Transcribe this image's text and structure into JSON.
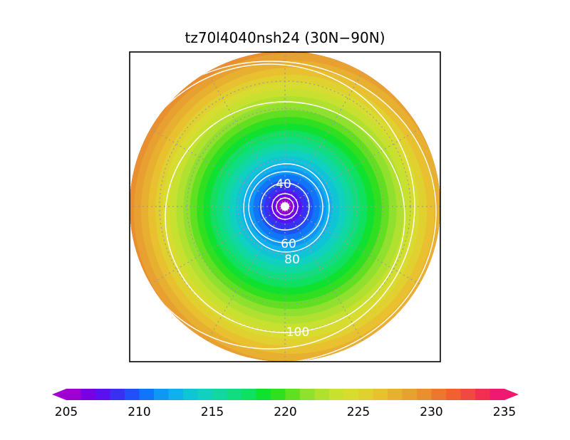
{
  "chart_data": {
    "type": "heatmap",
    "title": "tz70l4040nsh24 (30N−90N)",
    "projection": "north-polar-stereographic",
    "latitude_range": [
      "30N",
      "90N"
    ],
    "colorbar": {
      "min": 205,
      "max": 235,
      "step": 1,
      "tick_labels": [
        "205",
        "210",
        "215",
        "220",
        "225",
        "230",
        "235"
      ],
      "tick_values": [
        205,
        210,
        215,
        220,
        225,
        230,
        235
      ],
      "colors": [
        "#9d00d0",
        "#7a00e4",
        "#5a10f0",
        "#3a30f4",
        "#2050f8",
        "#1075f8",
        "#1097f4",
        "#10b0ec",
        "#10c4d8",
        "#10d0c0",
        "#10d8a0",
        "#10dc80",
        "#10e060",
        "#10e030",
        "#30e020",
        "#60e020",
        "#90e030",
        "#b0e030",
        "#c8e030",
        "#d8dc30",
        "#e0d030",
        "#e8c030",
        "#e8b030",
        "#e8a030",
        "#e89030",
        "#ec7830",
        "#f06030",
        "#f04a40",
        "#f03050",
        "#f01870"
      ],
      "extend": "both"
    },
    "field_center_value": 205,
    "field_edge_values": {
      "top-left": 233,
      "left": 229,
      "bottom": 226,
      "right": 222
    },
    "contour_lines": [
      {
        "value": 20,
        "label": ""
      },
      {
        "value": 40,
        "label": "40"
      },
      {
        "value": 60,
        "label": "60"
      },
      {
        "value": 80,
        "label": "80"
      },
      {
        "value": 100,
        "label": "100"
      }
    ],
    "grid": true,
    "grid_latitudes": [
      40,
      50,
      60,
      70,
      80
    ],
    "grid_longitude_step": 30,
    "contour_color": "#ffffff",
    "grid_color": "#9a9a9a"
  }
}
